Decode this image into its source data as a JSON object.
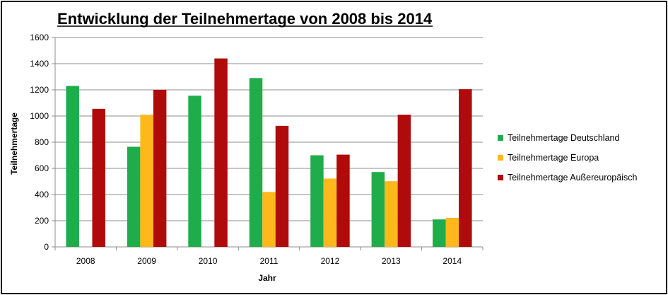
{
  "chart_data": {
    "type": "bar",
    "title": "Entwicklung der Teilnehmertage von 2008 bis 2014",
    "xlabel": "Jahr",
    "ylabel": "Teilnehmertage",
    "categories": [
      "2008",
      "2009",
      "2010",
      "2011",
      "2012",
      "2013",
      "2014"
    ],
    "ylim": [
      0,
      1600
    ],
    "yticks": [
      0,
      200,
      400,
      600,
      800,
      1000,
      1200,
      1400,
      1600
    ],
    "grid": true,
    "legend_position": "right",
    "series": [
      {
        "name": "Teilnehmertage Deutschland",
        "color": "#1fad4b",
        "values": [
          1230,
          765,
          1155,
          1290,
          700,
          572,
          210
        ]
      },
      {
        "name": "Teilnehmertage Europa",
        "color": "#ffb81c",
        "values": [
          0,
          1010,
          0,
          420,
          522,
          502,
          222
        ]
      },
      {
        "name": "Teilnehmertage Außereuropäisch",
        "color": "#b00b0b",
        "values": [
          1055,
          1200,
          1440,
          925,
          705,
          1010,
          1205
        ]
      }
    ]
  }
}
